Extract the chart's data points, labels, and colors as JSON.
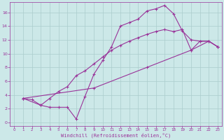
{
  "xlabel": "Windchill (Refroidissement éolien,°C)",
  "ylabel": "",
  "background_color": "#cce8e8",
  "grid_color": "#aacccc",
  "line_color": "#993399",
  "xlim": [
    -0.5,
    23.5
  ],
  "ylim": [
    -0.5,
    17.5
  ],
  "xticks": [
    0,
    1,
    2,
    3,
    4,
    5,
    6,
    7,
    8,
    9,
    10,
    11,
    12,
    13,
    14,
    15,
    16,
    17,
    18,
    19,
    20,
    21,
    22,
    23
  ],
  "yticks": [
    0,
    2,
    4,
    6,
    8,
    10,
    12,
    14,
    16
  ],
  "line1_x": [
    1,
    2,
    3,
    4,
    5,
    6,
    7,
    8,
    9,
    10,
    11,
    12,
    13,
    14,
    15,
    16,
    17,
    18,
    19,
    20,
    21,
    22,
    23
  ],
  "line1_y": [
    3.5,
    3.3,
    2.5,
    2.2,
    2.2,
    2.2,
    0.5,
    3.8,
    7.0,
    9.0,
    11.0,
    14.0,
    14.5,
    15.0,
    16.2,
    16.5,
    17.0,
    15.8,
    13.3,
    12.0,
    11.8,
    11.8,
    11.0
  ],
  "line2_x": [
    1,
    3,
    4,
    5,
    6,
    7,
    8,
    9,
    10,
    11,
    12,
    13,
    14,
    15,
    16,
    17,
    18,
    19,
    20,
    21,
    22,
    23
  ],
  "line2_y": [
    3.5,
    2.5,
    3.5,
    4.5,
    5.2,
    6.8,
    7.5,
    8.5,
    9.5,
    10.5,
    11.2,
    11.8,
    12.3,
    12.8,
    13.2,
    13.5,
    13.2,
    13.5,
    10.5,
    11.8,
    11.8,
    11.0
  ],
  "line3_x": [
    1,
    9,
    15,
    20,
    22,
    23
  ],
  "line3_y": [
    3.5,
    5.0,
    8.0,
    10.5,
    11.8,
    11.0
  ]
}
